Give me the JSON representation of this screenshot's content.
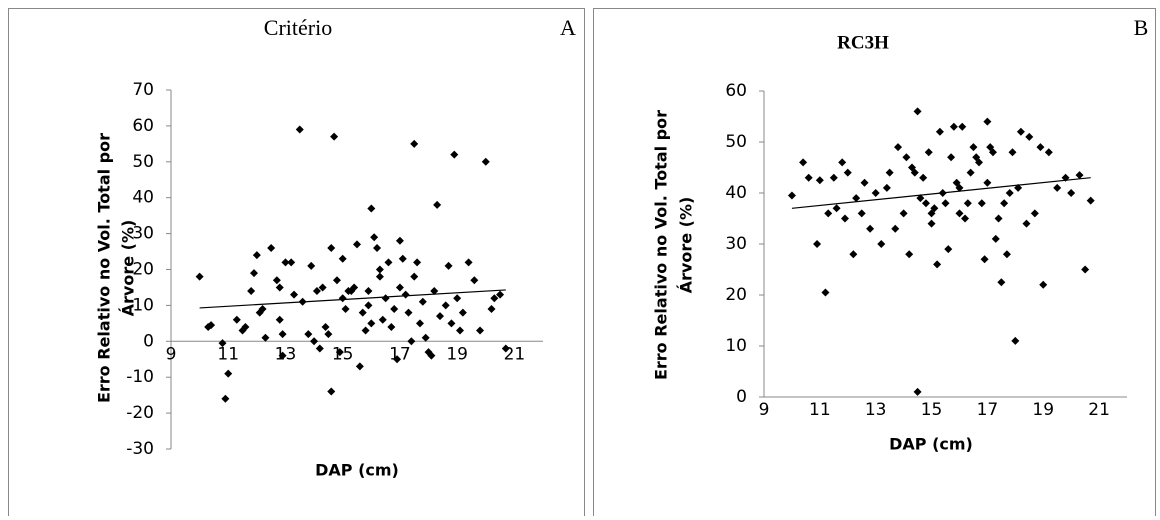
{
  "chart_data": [
    {
      "type": "scatter",
      "title": "Critério",
      "panel_label": "A",
      "x_label": "DAP (cm)",
      "y_label": [
        "Erro Relativo no Vol. Total por",
        "Árvore (%)"
      ],
      "xlim": [
        9,
        22
      ],
      "xticks": [
        9,
        11,
        13,
        15,
        17,
        19,
        21
      ],
      "ylim": [
        -30,
        70
      ],
      "yticks": [
        -30,
        -20,
        -10,
        0,
        10,
        20,
        30,
        40,
        50,
        60,
        70
      ],
      "color": "#000000",
      "x": [
        10.0,
        10.3,
        10.4,
        10.8,
        10.9,
        11.0,
        11.3,
        11.5,
        11.6,
        11.8,
        11.9,
        12.0,
        12.1,
        12.2,
        12.3,
        12.5,
        12.7,
        12.8,
        12.8,
        12.9,
        12.9,
        13.0,
        13.2,
        13.3,
        13.5,
        13.6,
        13.8,
        13.9,
        14.0,
        14.1,
        14.2,
        14.3,
        14.4,
        14.5,
        14.6,
        14.6,
        14.7,
        14.8,
        14.9,
        15.0,
        15.0,
        15.1,
        15.2,
        15.3,
        15.4,
        15.5,
        15.6,
        15.7,
        15.8,
        15.9,
        15.9,
        16.0,
        16.0,
        16.1,
        16.2,
        16.3,
        16.3,
        16.4,
        16.5,
        16.6,
        16.7,
        16.8,
        16.9,
        17.0,
        17.0,
        17.1,
        17.2,
        17.3,
        17.4,
        17.5,
        17.5,
        17.6,
        17.7,
        17.8,
        17.9,
        18.0,
        18.1,
        18.2,
        18.3,
        18.4,
        18.6,
        18.7,
        18.8,
        18.9,
        19.0,
        19.1,
        19.2,
        19.4,
        19.6,
        19.8,
        20.0,
        20.2,
        20.3,
        20.5,
        20.7
      ],
      "values": [
        18,
        4,
        4.5,
        -0.5,
        -16,
        -9,
        6,
        3,
        4,
        14,
        19,
        24,
        8,
        9,
        1,
        26,
        17,
        15,
        6,
        2,
        -4,
        22,
        22,
        13,
        59,
        11,
        2,
        21,
        0,
        14,
        -2,
        15,
        4,
        2,
        -14,
        26,
        57,
        17,
        -3,
        23,
        12,
        9,
        14,
        14,
        15,
        27,
        -7,
        8,
        3,
        14,
        10,
        5,
        37,
        29,
        26,
        20,
        18,
        6,
        12,
        22,
        4,
        9,
        -5,
        15,
        28,
        23,
        13,
        8,
        0,
        55,
        18,
        22,
        5,
        11,
        1,
        -3,
        -4,
        14,
        38,
        7,
        10,
        21,
        5,
        52,
        12,
        3,
        8,
        22,
        17,
        3,
        50,
        9,
        12,
        13,
        -2
      ],
      "trendline": {
        "x": [
          10,
          20.7
        ],
        "values": [
          9.3,
          14.3
        ]
      }
    },
    {
      "type": "scatter",
      "title": "RC3H",
      "panel_label": "B",
      "x_label": "DAP (cm)",
      "y_label": [
        "Erro Relativo no Vol. Total por",
        "Árvore (%)"
      ],
      "xlim": [
        9,
        22
      ],
      "xticks": [
        9,
        11,
        13,
        15,
        17,
        19,
        21
      ],
      "ylim": [
        0,
        60
      ],
      "yticks": [
        0,
        10,
        20,
        30,
        40,
        50,
        60
      ],
      "color": "#000000",
      "x": [
        10.0,
        10.4,
        10.6,
        10.9,
        11.0,
        11.2,
        11.3,
        11.5,
        11.6,
        11.8,
        11.9,
        12.0,
        12.2,
        12.3,
        12.5,
        12.6,
        12.8,
        13.0,
        13.2,
        13.4,
        13.5,
        13.7,
        13.8,
        14.0,
        14.1,
        14.2,
        14.3,
        14.4,
        14.5,
        14.5,
        14.6,
        14.7,
        14.8,
        14.9,
        15.0,
        15.0,
        15.1,
        15.2,
        15.3,
        15.4,
        15.5,
        15.6,
        15.7,
        15.8,
        15.9,
        16.0,
        16.0,
        16.1,
        16.2,
        16.3,
        16.4,
        16.5,
        16.6,
        16.7,
        16.8,
        16.9,
        17.0,
        17.0,
        17.1,
        17.2,
        17.3,
        17.4,
        17.5,
        17.6,
        17.7,
        17.8,
        17.9,
        18.0,
        18.1,
        18.2,
        18.4,
        18.5,
        18.7,
        18.9,
        19.0,
        19.2,
        19.5,
        19.8,
        20.0,
        20.3,
        20.5,
        20.7
      ],
      "values": [
        39.5,
        46,
        43,
        30,
        42.5,
        20.5,
        36,
        43,
        37,
        46,
        35,
        44,
        28,
        39,
        36,
        42,
        33,
        40,
        30,
        41,
        44,
        33,
        49,
        36,
        47,
        28,
        45,
        44,
        56,
        1,
        39,
        43,
        38,
        48,
        36,
        34,
        37,
        26,
        52,
        40,
        38,
        29,
        47,
        53,
        42,
        36,
        41,
        53,
        35,
        38,
        44,
        49,
        47,
        46,
        38,
        27,
        54,
        42,
        49,
        48,
        31,
        35,
        22.5,
        38,
        28,
        40,
        48,
        11,
        41,
        52,
        34,
        51,
        36,
        49,
        22,
        48,
        41,
        43,
        40,
        43.5,
        25,
        38.5
      ],
      "trendline": {
        "x": [
          10,
          20.7
        ],
        "values": [
          37,
          43
        ]
      }
    }
  ]
}
